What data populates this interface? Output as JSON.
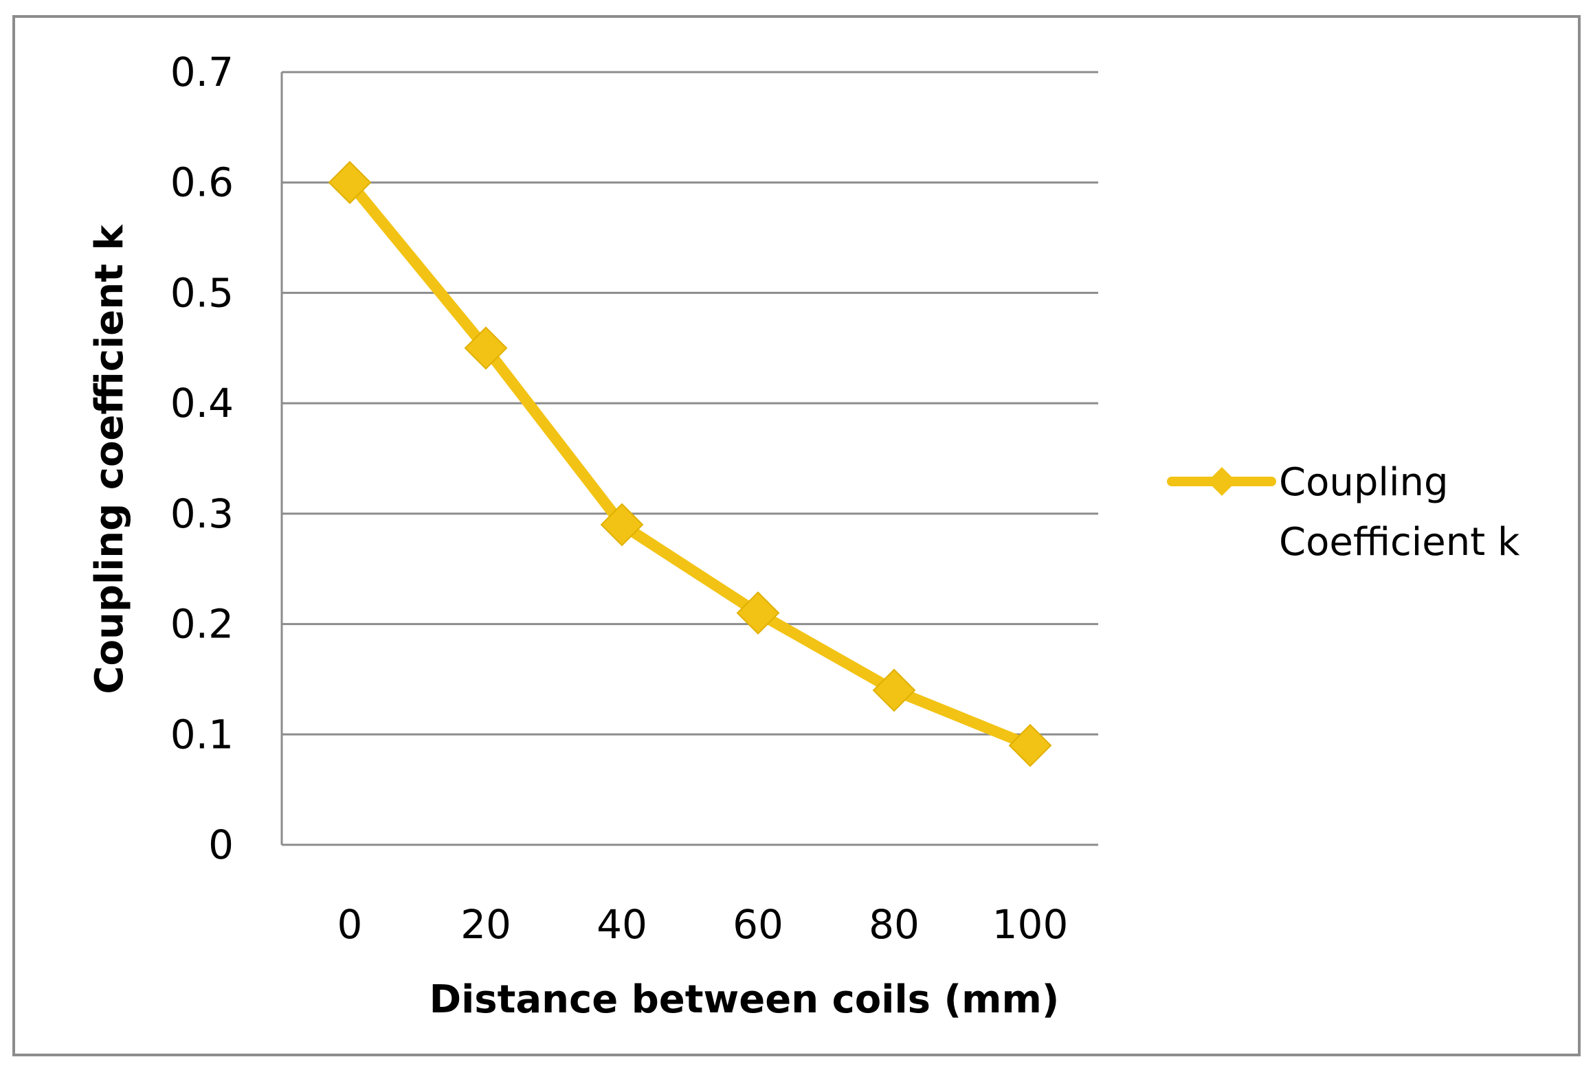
{
  "chart_data": {
    "type": "line",
    "xlabel": "Distance between coils (mm)",
    "ylabel": "Coupling coefficient k",
    "categories": [
      "0",
      "20",
      "40",
      "60",
      "80",
      "100"
    ],
    "y_ticks": [
      "0",
      "0.1",
      "0.2",
      "0.3",
      "0.4",
      "0.5",
      "0.6",
      "0.7"
    ],
    "ylim": [
      0,
      0.7
    ],
    "grid": true,
    "legend_position": "right",
    "series": [
      {
        "name": "Coupling Coefficient k",
        "legend_lines": [
          "Coupling",
          "Coefficient k"
        ],
        "values": [
          0.6,
          0.45,
          0.29,
          0.21,
          0.14,
          0.09
        ],
        "color": "#F2C314",
        "marker": "diamond"
      }
    ]
  }
}
